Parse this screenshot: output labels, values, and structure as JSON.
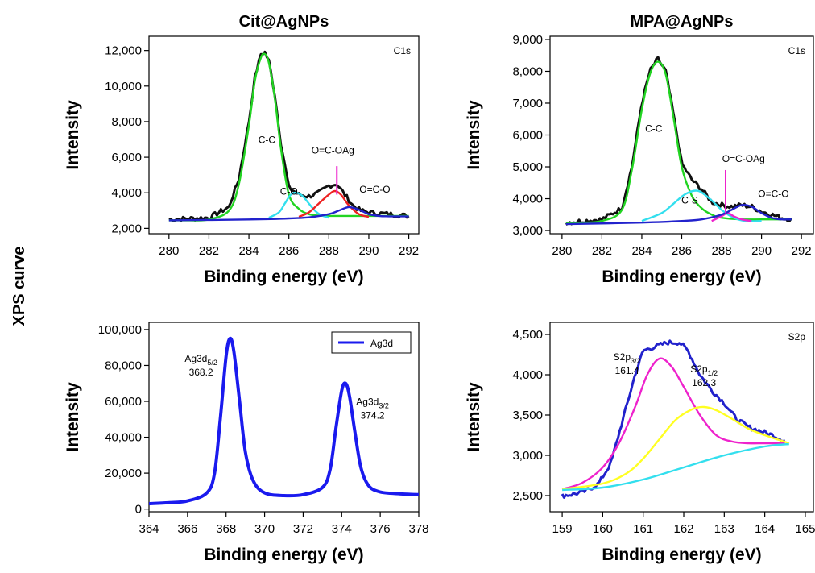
{
  "side_label": "XPS curve",
  "colors": {
    "black": "#111111",
    "green": "#22d422",
    "cyan": "#33dfee",
    "red": "#ee2222",
    "blue": "#2222cc",
    "magenta": "#ee22cc",
    "yellow": "#ffff22",
    "ag_blue": "#1a1aee"
  },
  "chart_data": [
    {
      "id": "cit-c1s",
      "type": "line",
      "title": "Cit@AgNPs",
      "corner_label": "C1s",
      "xlabel": "Binding energy (eV)",
      "ylabel": "Intensity",
      "xlim": [
        279,
        292.5
      ],
      "ylim": [
        1700,
        12800
      ],
      "xticks": [
        280,
        282,
        284,
        286,
        288,
        290,
        292
      ],
      "xtick_labels": [
        "280",
        "282",
        "284",
        "286",
        "288",
        "290",
        "292"
      ],
      "yticks": [
        2000,
        4000,
        6000,
        8000,
        10000,
        12000
      ],
      "ytick_labels": [
        "2,000",
        "4,000",
        "6,000",
        "8,000",
        "10,000",
        "12,000"
      ],
      "series": [
        {
          "color": "black",
          "noisy": true,
          "x": [
            280,
            281,
            282,
            283,
            283.5,
            284,
            284.3,
            284.6,
            284.8,
            285,
            285.3,
            285.6,
            286,
            286.5,
            287,
            287.5,
            288,
            288.4,
            288.8,
            289.2,
            289.6,
            290,
            290.5,
            291,
            291.5,
            292
          ],
          "y": [
            2500,
            2550,
            2600,
            3200,
            4800,
            8000,
            10500,
            11800,
            11900,
            11400,
            9500,
            6800,
            4300,
            3900,
            3800,
            4000,
            4400,
            4500,
            3900,
            3300,
            3000,
            2900,
            2850,
            2800,
            2750,
            2700
          ]
        },
        {
          "color": "green",
          "x": [
            280,
            281,
            282,
            283,
            283.5,
            284,
            284.3,
            284.6,
            284.8,
            285,
            285.3,
            285.6,
            286,
            286.5,
            287,
            287.5,
            288,
            289,
            290,
            291,
            292
          ],
          "y": [
            2450,
            2450,
            2500,
            3000,
            4500,
            7800,
            10300,
            11600,
            11800,
            11300,
            9300,
            6500,
            3900,
            3100,
            2800,
            2720,
            2700,
            2700,
            2700,
            2700,
            2700
          ]
        },
        {
          "color": "cyan",
          "x": [
            285,
            285.5,
            285.8,
            286.1,
            286.4,
            286.7,
            287,
            287.3,
            287.6,
            288
          ],
          "y": [
            2600,
            2900,
            3400,
            3900,
            4000,
            3800,
            3400,
            3000,
            2750,
            2600
          ]
        },
        {
          "color": "red",
          "x": [
            286.5,
            287,
            287.5,
            288,
            288.3,
            288.6,
            289,
            289.5,
            290
          ],
          "y": [
            2650,
            2900,
            3400,
            3900,
            4100,
            3900,
            3300,
            2800,
            2650
          ]
        },
        {
          "color": "blue",
          "x": [
            280,
            284,
            286,
            287,
            288,
            288.5,
            289,
            289.5,
            290,
            290.5,
            291,
            292
          ],
          "y": [
            2450,
            2500,
            2560,
            2620,
            2800,
            3000,
            3200,
            3050,
            2800,
            2700,
            2680,
            2680
          ]
        }
      ],
      "annotations": [
        {
          "text": "C-C",
          "x": 284.9,
          "y": 6800
        },
        {
          "text": "C-O",
          "x": 286.0,
          "y": 3900
        },
        {
          "text": "O=C-OAg",
          "x": 288.2,
          "y": 6200
        },
        {
          "text": "O=C-O",
          "x": 290.3,
          "y": 4000
        }
      ],
      "markers": [
        {
          "x": 288.4,
          "y_from": 5500,
          "y_to": 3900
        }
      ]
    },
    {
      "id": "mpa-c1s",
      "type": "line",
      "title": "MPA@AgNPs",
      "corner_label": "C1s",
      "xlabel": "Binding energy (eV)",
      "ylabel": "Intensity",
      "xlim": [
        279.4,
        292.6
      ],
      "ylim": [
        2900,
        9100
      ],
      "xticks": [
        280,
        282,
        284,
        286,
        288,
        290,
        292
      ],
      "xtick_labels": [
        "280",
        "282",
        "284",
        "286",
        "288",
        "290",
        "292"
      ],
      "yticks": [
        3000,
        4000,
        5000,
        6000,
        7000,
        8000,
        9000
      ],
      "ytick_labels": [
        "3,000",
        "4,000",
        "5,000",
        "6,000",
        "7,000",
        "8,000",
        "9,000"
      ],
      "series": [
        {
          "color": "black",
          "noisy": true,
          "x": [
            280.2,
            281,
            282,
            283,
            283.5,
            284,
            284.4,
            284.8,
            285.2,
            285.6,
            286,
            286.5,
            287,
            287.5,
            288,
            288.5,
            289,
            289.5,
            290,
            290.5,
            291,
            291.5
          ],
          "y": [
            3250,
            3300,
            3350,
            3700,
            5000,
            7000,
            8000,
            8400,
            8000,
            6600,
            5100,
            4600,
            4300,
            3900,
            3800,
            3750,
            3800,
            3750,
            3600,
            3500,
            3400,
            3350
          ]
        },
        {
          "color": "green",
          "x": [
            280.2,
            281,
            282,
            283,
            283.5,
            284,
            284.4,
            284.8,
            285.2,
            285.6,
            286,
            286.5,
            287,
            287.5,
            288,
            289,
            290,
            291,
            291.5
          ],
          "y": [
            3250,
            3250,
            3300,
            3650,
            4900,
            6800,
            7900,
            8300,
            7900,
            6500,
            5000,
            4100,
            3700,
            3500,
            3400,
            3350,
            3350,
            3350,
            3350
          ]
        },
        {
          "color": "cyan",
          "x": [
            284,
            285,
            285.6,
            286.2,
            286.8,
            287.4,
            288,
            288.6,
            289.2,
            290
          ],
          "y": [
            3300,
            3550,
            3850,
            4150,
            4250,
            4000,
            3650,
            3400,
            3300,
            3300
          ]
        },
        {
          "color": "magenta",
          "x": [
            287.5,
            288,
            288.3,
            288.6,
            289,
            289.5
          ],
          "y": [
            3300,
            3450,
            3550,
            3450,
            3350,
            3300
          ]
        },
        {
          "color": "blue",
          "x": [
            280.2,
            284,
            286,
            287,
            288,
            288.5,
            289,
            289.5,
            290,
            290.5,
            291,
            291.5
          ],
          "y": [
            3200,
            3250,
            3300,
            3350,
            3500,
            3650,
            3800,
            3750,
            3550,
            3400,
            3350,
            3350
          ]
        }
      ],
      "annotations": [
        {
          "text": "C-C",
          "x": 284.6,
          "y": 6100
        },
        {
          "text": "C-S",
          "x": 286.4,
          "y": 3850
        },
        {
          "text": "O=C-OAg",
          "x": 289.1,
          "y": 5150
        },
        {
          "text": "O=C-O",
          "x": 290.6,
          "y": 4050
        }
      ],
      "markers": [
        {
          "x": 288.2,
          "y_from": 4900,
          "y_to": 3550
        }
      ]
    },
    {
      "id": "cit-ag3d",
      "type": "line",
      "title": "",
      "corner_label": "",
      "xlabel": "Binding energy (eV)",
      "ylabel": "Intensity",
      "xlim": [
        364,
        378
      ],
      "ylim": [
        -1500,
        104000
      ],
      "xticks": [
        364,
        366,
        368,
        370,
        372,
        374,
        376,
        378
      ],
      "xtick_labels": [
        "364",
        "366",
        "368",
        "370",
        "372",
        "374",
        "376",
        "378"
      ],
      "yticks": [
        0,
        20000,
        40000,
        60000,
        80000,
        100000
      ],
      "ytick_labels": [
        "0",
        "20,000",
        "40,000",
        "60,000",
        "80,000",
        "100,000"
      ],
      "legend": {
        "label": "Ag3d",
        "color": "ag_blue",
        "position": "top-right"
      },
      "series": [
        {
          "name": "Ag3d",
          "color": "ag_blue",
          "x": [
            364,
            365,
            366,
            367,
            367.4,
            367.7,
            368,
            368.2,
            368.4,
            368.7,
            369,
            369.4,
            370,
            371,
            372,
            373,
            373.4,
            373.7,
            374,
            374.2,
            374.4,
            374.7,
            375,
            375.4,
            376,
            377,
            378
          ],
          "y": [
            3000,
            3500,
            4500,
            9000,
            20000,
            50000,
            85000,
            95000,
            88000,
            60000,
            32000,
            16000,
            9000,
            7500,
            8000,
            12000,
            22000,
            45000,
            66000,
            70000,
            63000,
            42000,
            23000,
            13000,
            9500,
            8500,
            8000
          ]
        }
      ],
      "annotations": [
        {
          "text": "Ag3d",
          "sub": "5/2",
          "line2": "368.2",
          "x": 366.7,
          "y": 82000
        },
        {
          "text": "Ag3d",
          "sub": "3/2",
          "line2": "374.2",
          "x": 375.6,
          "y": 58000
        }
      ]
    },
    {
      "id": "mpa-s2p",
      "type": "line",
      "title": "",
      "corner_label": "S2p",
      "xlabel": "Binding energy (eV)",
      "ylabel": "Intensity",
      "xlim": [
        158.7,
        165.2
      ],
      "ylim": [
        2300,
        4650
      ],
      "xticks": [
        159,
        160,
        161,
        162,
        163,
        164,
        165
      ],
      "xtick_labels": [
        "159",
        "160",
        "161",
        "162",
        "163",
        "164",
        "165"
      ],
      "yticks": [
        2500,
        3000,
        3500,
        4000,
        4500
      ],
      "ytick_labels": [
        "2,500",
        "3,000",
        "3,500",
        "4,000",
        "4,500"
      ],
      "series": [
        {
          "color": "blue",
          "noisy": true,
          "x": [
            159,
            159.3,
            159.6,
            159.9,
            160.2,
            160.5,
            160.8,
            161,
            161.3,
            161.6,
            161.9,
            162.1,
            162.4,
            162.7,
            163,
            163.3,
            163.6,
            163.9,
            164.2,
            164.5
          ],
          "y": [
            2500,
            2520,
            2560,
            2650,
            2900,
            3450,
            4000,
            4300,
            4350,
            4400,
            4400,
            4300,
            4000,
            3800,
            3650,
            3450,
            3350,
            3300,
            3250,
            3180
          ]
        },
        {
          "color": "magenta",
          "x": [
            159,
            159.5,
            160,
            160.4,
            160.8,
            161.1,
            161.4,
            161.7,
            162,
            162.4,
            162.8,
            163.2,
            163.6,
            164,
            164.5
          ],
          "y": [
            2580,
            2660,
            2850,
            3150,
            3600,
            4000,
            4200,
            4100,
            3850,
            3500,
            3250,
            3170,
            3150,
            3150,
            3150
          ]
        },
        {
          "color": "yellow",
          "x": [
            159,
            160,
            160.6,
            161,
            161.4,
            161.8,
            162.2,
            162.5,
            162.8,
            163.2,
            163.6,
            164,
            164.6
          ],
          "y": [
            2580,
            2650,
            2780,
            2960,
            3200,
            3440,
            3570,
            3600,
            3560,
            3450,
            3330,
            3250,
            3150
          ]
        },
        {
          "color": "cyan",
          "x": [
            159,
            160,
            161,
            162,
            163,
            164,
            164.6
          ],
          "y": [
            2570,
            2600,
            2700,
            2850,
            3000,
            3110,
            3140
          ]
        }
      ],
      "annotations": [
        {
          "text": "S2p",
          "sub": "3/2",
          "line2": "161.4",
          "x": 160.6,
          "y": 4180
        },
        {
          "text": "S2p",
          "sub": "1/2",
          "line2": "162.3",
          "x": 162.5,
          "y": 4030
        }
      ]
    }
  ]
}
